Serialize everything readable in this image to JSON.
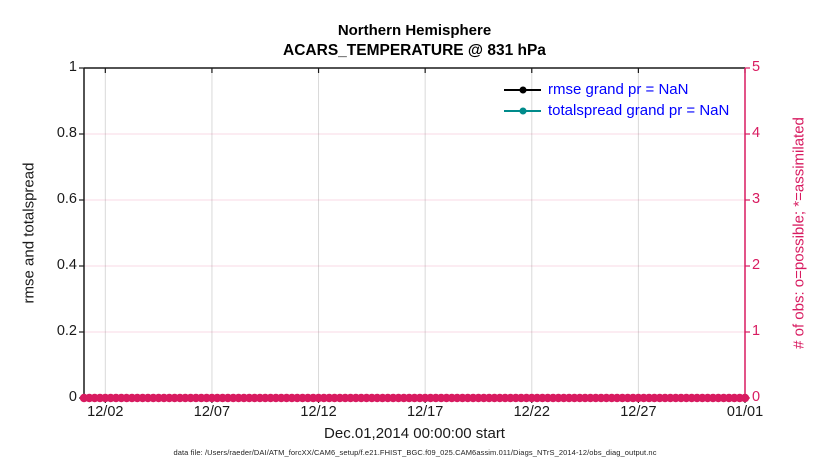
{
  "figure": {
    "title": "Northern Hemisphere",
    "subtitle": "ACARS_TEMPERATURE @ 831 hPa",
    "caption": "data file: /Users/raeder/DAI/ATM_forcXX/CAM6_setup/f.e21.FHIST_BGC.f09_025.CAM6assim.011/Diags_NTrS_2014-12/obs_diag_output.nc"
  },
  "colors": {
    "axis_black": "#1a1a1a",
    "obs_crimson": "#d81b60",
    "totalspread_teal": "#008b8b",
    "legend_text_blue": "#0000ff",
    "grid_gray": "#d9d9d9",
    "grid_pink": "rgba(216,27,96,0.16)"
  },
  "chart_data": {
    "type": "line",
    "title": "Northern Hemisphere",
    "subtitle": "ACARS_TEMPERATURE @ 831 hPa",
    "xlabel": "Dec.01,2014 00:00:00 start",
    "x_range_days": [
      0,
      31
    ],
    "x_tick_labels": [
      "12/02",
      "12/07",
      "12/12",
      "12/17",
      "12/22",
      "12/27",
      "01/01"
    ],
    "x_tick_days": [
      1,
      6,
      11,
      16,
      21,
      26,
      31
    ],
    "grid": true,
    "legend_position": "upper right inside, no box",
    "left_axis": {
      "label": "rmse and totalspread",
      "range": [
        0,
        1
      ],
      "ticks": [
        0,
        0.2,
        0.4,
        0.6,
        0.8,
        1
      ],
      "tick_labels": [
        "0",
        "0.2",
        "0.4",
        "0.6",
        "0.8",
        "1"
      ],
      "color": "#1a1a1a"
    },
    "right_axis": {
      "label": "# of obs: o=possible; *=assimilated",
      "range": [
        0,
        5
      ],
      "ticks": [
        0,
        1,
        2,
        3,
        4,
        5
      ],
      "tick_labels": [
        "0",
        "1",
        "2",
        "3",
        "4",
        "5"
      ],
      "color": "#d81b60"
    },
    "legend": [
      {
        "label": "rmse grand pr = NaN",
        "color": "#000000",
        "marker": "filled-circle"
      },
      {
        "label": "totalspread grand pr = NaN",
        "color": "#008b8b",
        "marker": "filled-circle"
      }
    ],
    "series": [
      {
        "name": "rmse",
        "axis": "left",
        "values": null,
        "note": "all NaN, nothing plotted"
      },
      {
        "name": "totalspread",
        "axis": "left",
        "values": null,
        "note": "all NaN, nothing plotted"
      }
    ],
    "obs_counts": {
      "axis": "right",
      "possible_marker": "o",
      "assimilated_marker": "*",
      "value_constant": 0,
      "n_times": 125,
      "color": "#d81b60",
      "note": "6-hourly bins Dec 1 - Jan 1, all counts 0: dense crimson marker band along y=0"
    }
  }
}
